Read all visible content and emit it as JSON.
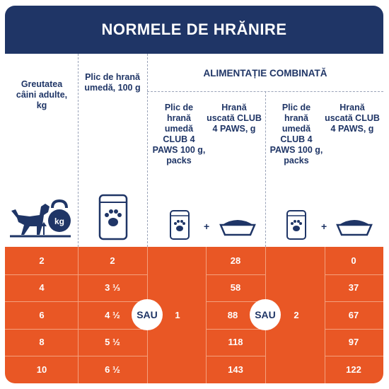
{
  "title": "NORMELE DE HRĂNIRE",
  "headers": {
    "weight": "Greutatea câini adulte, kg",
    "pouch": "Plic de hrană umedă, 100 g",
    "combined": "ALIMENTAȚIE COMBINATĂ",
    "combo_pouch": "Plic de hrană umedă CLUB 4 PAWS 100 g, packs",
    "combo_dry": "Hrană uscată CLUB 4 PAWS, g"
  },
  "icons": {
    "weight_badge": "kg",
    "plus": "+"
  },
  "rows": [
    {
      "weight": "2",
      "pouch": "2",
      "dry1": "28",
      "dry2": "0"
    },
    {
      "weight": "4",
      "pouch": "3 ⅓",
      "dry1": "58",
      "dry2": "37"
    },
    {
      "weight": "6",
      "pouch": "4 ½",
      "dry1": "88",
      "dry2": "67"
    },
    {
      "weight": "8",
      "pouch": "5 ½",
      "dry1": "118",
      "dry2": "97"
    },
    {
      "weight": "10",
      "pouch": "6 ½",
      "dry1": "143",
      "dry2": "122"
    }
  ],
  "combo_counts": [
    "1",
    "2"
  ],
  "or_label": "SAU",
  "colors": {
    "navy": "#1f3566",
    "orange": "#e95725",
    "white": "#ffffff"
  }
}
